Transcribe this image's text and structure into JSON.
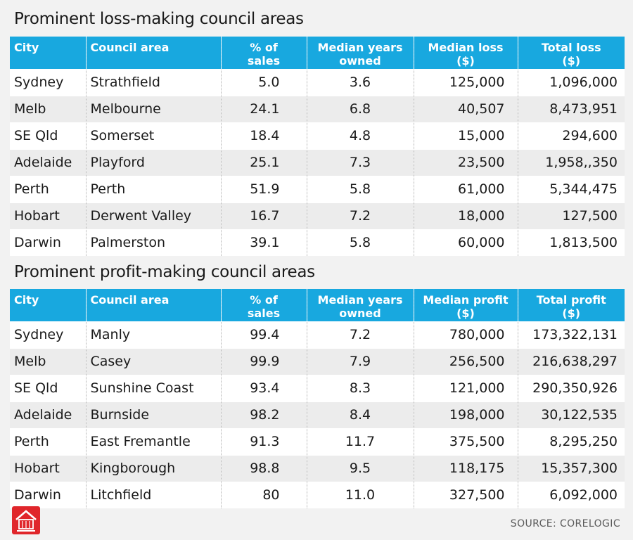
{
  "chart_data": [
    {
      "type": "table",
      "title": "Prominent loss-making council areas",
      "columns": [
        "City",
        "Council area",
        "% of sales",
        "Median years owned",
        "Median loss ($)",
        "Total loss ($)"
      ],
      "header": [
        {
          "line1": "City",
          "line2": ""
        },
        {
          "line1": "Council area",
          "line2": ""
        },
        {
          "line1": "% of",
          "line2": "sales"
        },
        {
          "line1": "Median years",
          "line2": "owned"
        },
        {
          "line1": "Median loss",
          "line2": "($)"
        },
        {
          "line1": "Total loss",
          "line2": "($)"
        }
      ],
      "rows": [
        [
          "Sydney",
          "Strathfield",
          "5.0",
          "3.6",
          "125,000",
          "1,096,000"
        ],
        [
          "Melb",
          "Melbourne",
          "24.1",
          "6.8",
          "40,507",
          "8,473,951"
        ],
        [
          "SE Qld",
          "Somerset",
          "18.4",
          "4.8",
          "15,000",
          "294,600"
        ],
        [
          "Adelaide",
          "Playford",
          "25.1",
          "7.3",
          "23,500",
          "1,958,,350"
        ],
        [
          "Perth",
          "Perth",
          "51.9",
          "5.8",
          "61,000",
          "5,344,475"
        ],
        [
          "Hobart",
          "Derwent Valley",
          "16.7",
          "7.2",
          "18,000",
          "127,500"
        ],
        [
          "Darwin",
          "Palmerston",
          "39.1",
          "5.8",
          "60,000",
          "1,813,500"
        ]
      ]
    },
    {
      "type": "table",
      "title": "Prominent profit-making council areas",
      "columns": [
        "City",
        "Council area",
        "% of sales",
        "Median years owned",
        "Median profit ($)",
        "Total profit ($)"
      ],
      "header": [
        {
          "line1": "City",
          "line2": ""
        },
        {
          "line1": "Council area",
          "line2": ""
        },
        {
          "line1": "% of",
          "line2": "sales"
        },
        {
          "line1": "Median years",
          "line2": "owned"
        },
        {
          "line1": "Median profit",
          "line2": "($)"
        },
        {
          "line1": "Total profit",
          "line2": "($)"
        }
      ],
      "rows": [
        [
          "Sydney",
          "Manly",
          "99.4",
          "7.2",
          "780,000",
          "173,322,131"
        ],
        [
          "Melb",
          "Casey",
          "99.9",
          "7.9",
          "256,500",
          "216,638,297"
        ],
        [
          "SE Qld",
          "Sunshine Coast",
          "93.4",
          "8.3",
          "121,000",
          "290,350,926"
        ],
        [
          "Adelaide",
          "Burnside",
          "98.2",
          "8.4",
          "198,000",
          "30,122,535"
        ],
        [
          "Perth",
          "East Fremantle",
          "91.3",
          "11.7",
          "375,500",
          "8,295,250"
        ],
        [
          "Hobart",
          "Kingborough",
          "98.8",
          "9.5",
          "118,175",
          "15,357,300"
        ],
        [
          "Darwin",
          "Litchfield",
          "80",
          "11.0",
          "327,500",
          "6,092,000"
        ]
      ]
    }
  ],
  "footer": {
    "source": "SOURCE: CORELOGIC"
  },
  "colors": {
    "header_bg": "#18a8df",
    "row_alt": "#ececec",
    "logo": "#e0262b"
  },
  "icons": {
    "logo": "house-logo-icon"
  }
}
